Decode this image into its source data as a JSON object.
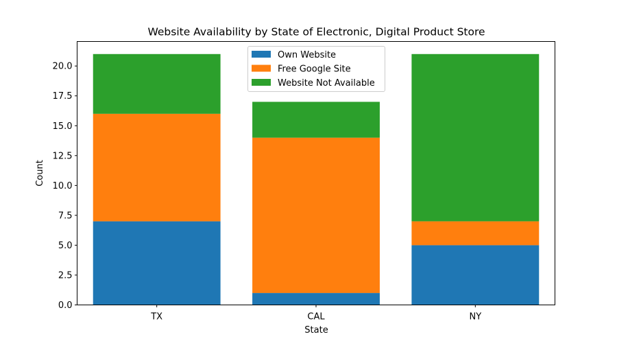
{
  "chart_data": {
    "type": "bar",
    "stacked": true,
    "title": "Website Availability by State of Electronic, Digital Product Store",
    "xlabel": "State",
    "ylabel": "Count",
    "categories": [
      "TX",
      "CAL",
      "NY"
    ],
    "ylim": [
      0,
      22.05
    ],
    "yticks": [
      "0.0",
      "2.5",
      "5.0",
      "7.5",
      "10.0",
      "12.5",
      "15.0",
      "17.5",
      "20.0"
    ],
    "grid": false,
    "legend_position": "top-center",
    "series": [
      {
        "name": "Own Website",
        "color": "#1f77b4",
        "values": [
          7,
          1,
          5
        ]
      },
      {
        "name": "Free Google Site",
        "color": "#ff7f0e",
        "values": [
          9,
          13,
          2
        ]
      },
      {
        "name": "Website Not Available",
        "color": "#2ca02c",
        "values": [
          5,
          3,
          14
        ]
      }
    ]
  }
}
